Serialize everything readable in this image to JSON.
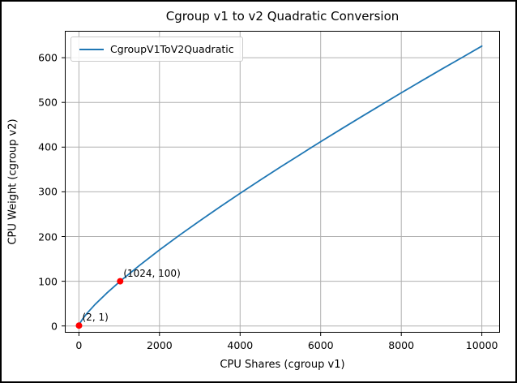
{
  "chart_data": {
    "type": "line",
    "title": "Cgroup v1 to v2 Quadratic Conversion",
    "xlabel": "CPU Shares (cgroup v1)",
    "ylabel": "CPU Weight (cgroup v2)",
    "legend": {
      "position": "upper-left",
      "entries": [
        "CgroupV1ToV2Quadratic"
      ]
    },
    "grid": true,
    "line_color": "#1f77b4",
    "marker_color": "#ff0000",
    "grid_color": "#b0b0b0",
    "xlim": [
      -350,
      10450
    ],
    "ylim": [
      -15,
      660
    ],
    "xticks": [
      0,
      2000,
      4000,
      6000,
      8000,
      10000
    ],
    "yticks": [
      0,
      100,
      200,
      300,
      400,
      500,
      600
    ],
    "series": [
      {
        "name": "CgroupV1ToV2Quadratic",
        "x": [
          2,
          5,
          10,
          20,
          50,
          100,
          200,
          400,
          700,
          1024,
          1500,
          2000,
          2500,
          3000,
          3500,
          4000,
          4500,
          5000,
          5500,
          6000,
          6500,
          7000,
          7500,
          8000,
          8500,
          9000,
          9500,
          10000
        ],
        "y": [
          1,
          1.9,
          3.1,
          5.1,
          10,
          16.7,
          28.2,
          48.1,
          74.2,
          100,
          135.2,
          170.0,
          203.2,
          235.2,
          266.2,
          296.5,
          326.3,
          355.3,
          383.9,
          412.1,
          439.9,
          467.3,
          494.4,
          521.3,
          547.9,
          574.2,
          599.9,
          625.9
        ]
      }
    ],
    "annotated_points": [
      {
        "x": 2,
        "y": 1,
        "label": "(2, 1)"
      },
      {
        "x": 1024,
        "y": 100,
        "label": "(1024, 100)"
      }
    ]
  }
}
